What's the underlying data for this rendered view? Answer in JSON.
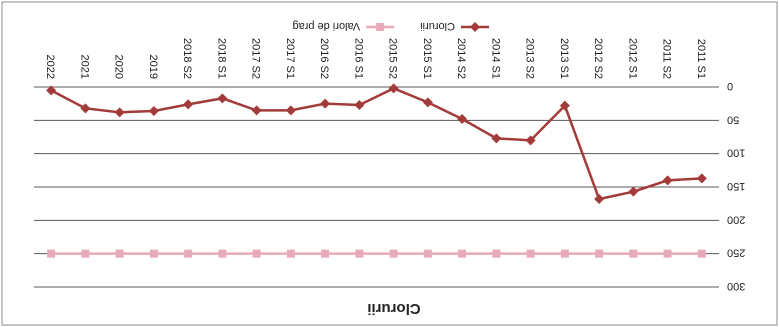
{
  "chart_data": {
    "type": "line",
    "title": "Clorurii",
    "xlabel": "",
    "ylabel": "",
    "orientation": "rotated 180 degrees",
    "ylim": [
      0,
      300
    ],
    "y_ticks": [
      "0",
      "50",
      "100",
      "150",
      "200",
      "250",
      "300"
    ],
    "grid": true,
    "legend_position": "bottom",
    "categories": [
      "2011 S1",
      "2011 S2",
      "2012 S1",
      "2012 S2",
      "2013 S1",
      "2013 S2",
      "2014 S1",
      "2014 S2",
      "2015 S1",
      "2015 S2",
      "2016 S1",
      "2016 S2",
      "2017 S1",
      "2017 S2",
      "2018 S1",
      "2018 S2",
      "2019",
      "2020",
      "2021",
      "2022"
    ],
    "series": [
      {
        "name": "Clorurii",
        "color": "#a33b3b",
        "marker": "diamond",
        "values": [
          137,
          140,
          157,
          168,
          28,
          80,
          77,
          48,
          23,
          2,
          27,
          25,
          35,
          35,
          17,
          26,
          36,
          38,
          32,
          5
        ]
      },
      {
        "name": "Valori de prag",
        "color": "#e7aab8",
        "marker": "square",
        "values": [
          250,
          250,
          250,
          250,
          250,
          250,
          250,
          250,
          250,
          250,
          250,
          250,
          250,
          250,
          250,
          250,
          250,
          250,
          250,
          250
        ]
      }
    ]
  }
}
